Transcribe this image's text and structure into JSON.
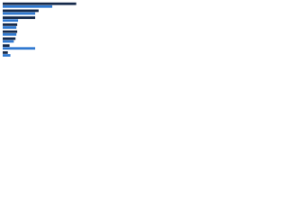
{
  "chart_data": {
    "type": "bar",
    "orientation": "horizontal",
    "categories": [
      null,
      null,
      null,
      null,
      null,
      null,
      null,
      null
    ],
    "series": [
      {
        "color": "#15294a",
        "values": [
          86,
          42,
          38,
          17,
          17,
          15,
          8,
          6
        ]
      },
      {
        "color": "#2f78d0",
        "values": [
          58,
          38,
          18,
          16,
          16,
          13,
          38,
          9
        ]
      }
    ],
    "xlim": [
      0,
      100
    ]
  }
}
